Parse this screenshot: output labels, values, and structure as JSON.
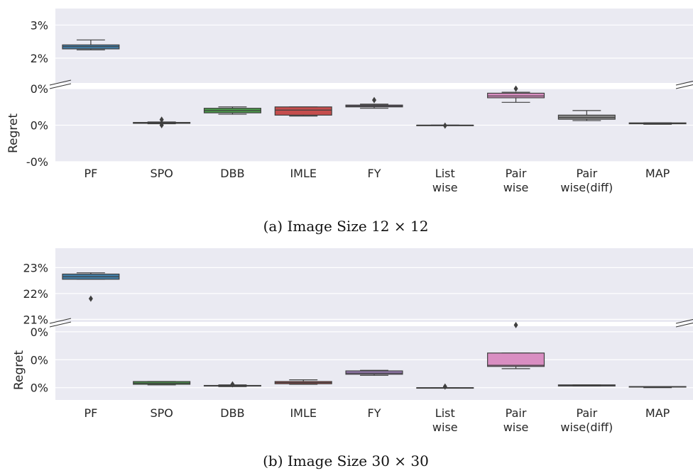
{
  "chart_data": [
    {
      "type": "box",
      "caption": "(a) Image Size 12 × 12",
      "ylabel": "Regret",
      "categories": [
        {
          "lines": [
            "PF"
          ]
        },
        {
          "lines": [
            "SPO"
          ]
        },
        {
          "lines": [
            "DBB"
          ]
        },
        {
          "lines": [
            "IMLE"
          ]
        },
        {
          "lines": [
            "FY"
          ]
        },
        {
          "lines": [
            "List",
            "wise"
          ]
        },
        {
          "lines": [
            "Pair",
            "wise"
          ]
        },
        {
          "lines": [
            "Pair",
            "wise(diff)"
          ]
        },
        {
          "lines": [
            "MAP"
          ]
        }
      ],
      "upper_ticks": [
        {
          "label": "3%",
          "value": 3.0
        },
        {
          "label": "2%",
          "value": 2.0
        }
      ],
      "upper_ylim": [
        1.25,
        3.5
      ],
      "lower_ticks": [
        {
          "label": "0%",
          "value": 0.8
        },
        {
          "label": "0%",
          "value": 0.0
        },
        {
          "label": "-0%",
          "value": -0.8
        }
      ],
      "lower_ylim": [
        -0.8,
        0.8
      ],
      "boxes": [
        {
          "panel": "upper",
          "color": "#3274a1",
          "whislo": 2.25,
          "q1": 2.28,
          "med": 2.35,
          "q3": 2.4,
          "whishi": 2.55,
          "fliers": []
        },
        {
          "panel": "lower",
          "color": "#3a923a",
          "whislo": 0.03,
          "q1": 0.04,
          "med": 0.05,
          "q3": 0.06,
          "whishi": 0.07,
          "fliers": [
            0.0,
            0.12
          ]
        },
        {
          "panel": "lower",
          "color": "#3a923a",
          "whislo": 0.24,
          "q1": 0.27,
          "med": 0.32,
          "q3": 0.37,
          "whishi": 0.4,
          "fliers": []
        },
        {
          "panel": "lower",
          "color": "#c03d3e",
          "whislo": 0.2,
          "q1": 0.22,
          "med": 0.33,
          "q3": 0.4,
          "whishi": 0.4,
          "fliers": []
        },
        {
          "panel": "lower",
          "color": "#9372b2",
          "whislo": 0.37,
          "q1": 0.4,
          "med": 0.42,
          "q3": 0.44,
          "whishi": 0.46,
          "fliers": [
            0.55
          ]
        },
        {
          "panel": "lower",
          "color": "#845b53",
          "whislo": 0.0,
          "q1": 0.0,
          "med": 0.0,
          "q3": 0.0,
          "whishi": 0.0,
          "fliers": [
            -0.01
          ]
        },
        {
          "panel": "lower",
          "color": "#d684bd",
          "whislo": 0.5,
          "q1": 0.6,
          "med": 0.64,
          "q3": 0.7,
          "whishi": 0.72,
          "fliers": [
            0.8
          ]
        },
        {
          "panel": "lower",
          "color": "#7f7f7f",
          "whislo": 0.1,
          "q1": 0.13,
          "med": 0.17,
          "q3": 0.22,
          "whishi": 0.32,
          "fliers": []
        },
        {
          "panel": "lower",
          "color": "#a9aa35",
          "whislo": 0.02,
          "q1": 0.03,
          "med": 0.04,
          "q3": 0.05,
          "whishi": 0.05,
          "fliers": []
        }
      ]
    },
    {
      "type": "box",
      "caption": "(b) Image Size 30 × 30",
      "ylabel": "Regret",
      "categories": [
        {
          "lines": [
            "PF"
          ]
        },
        {
          "lines": [
            "SPO"
          ]
        },
        {
          "lines": [
            "DBB"
          ]
        },
        {
          "lines": [
            "IMLE"
          ]
        },
        {
          "lines": [
            "FY"
          ]
        },
        {
          "lines": [
            "List",
            "wise"
          ]
        },
        {
          "lines": [
            "Pair",
            "wise"
          ]
        },
        {
          "lines": [
            "Pair",
            "wise(diff)"
          ]
        },
        {
          "lines": [
            "MAP"
          ]
        }
      ],
      "upper_ticks": [
        {
          "label": "23%",
          "value": 23.0
        },
        {
          "label": "22%",
          "value": 22.0
        },
        {
          "label": "21%",
          "value": 21.0
        }
      ],
      "upper_ylim": [
        20.9,
        23.75
      ],
      "lower_ticks": [
        {
          "label": "0%",
          "value": 1.0
        },
        {
          "label": "0%",
          "value": 0.5
        },
        {
          "label": "0%",
          "value": 0.0
        }
      ],
      "lower_ylim": [
        -0.22,
        1.1
      ],
      "boxes": [
        {
          "panel": "upper",
          "color": "#3274a1",
          "whislo": 22.55,
          "q1": 22.55,
          "med": 22.65,
          "q3": 22.75,
          "whishi": 22.8,
          "fliers": [
            21.8
          ]
        },
        {
          "panel": "lower",
          "color": "#3a923a",
          "whislo": 0.05,
          "q1": 0.06,
          "med": 0.08,
          "q3": 0.11,
          "whishi": 0.11,
          "fliers": []
        },
        {
          "panel": "lower",
          "color": "#3a923a",
          "whislo": 0.02,
          "q1": 0.03,
          "med": 0.03,
          "q3": 0.04,
          "whishi": 0.05,
          "fliers": [
            0.06
          ]
        },
        {
          "panel": "lower",
          "color": "#c03d3e",
          "whislo": 0.06,
          "q1": 0.07,
          "med": 0.09,
          "q3": 0.11,
          "whishi": 0.14,
          "fliers": []
        },
        {
          "panel": "lower",
          "color": "#9372b2",
          "whislo": 0.22,
          "q1": 0.24,
          "med": 0.26,
          "q3": 0.3,
          "whishi": 0.31,
          "fliers": []
        },
        {
          "panel": "lower",
          "color": "#845b53",
          "whislo": 0.0,
          "q1": 0.0,
          "med": 0.0,
          "q3": 0.0,
          "whishi": 0.0,
          "fliers": [
            0.02
          ]
        },
        {
          "panel": "lower",
          "color": "#d684bd",
          "whislo": 0.34,
          "q1": 0.38,
          "med": 0.4,
          "q3": 0.62,
          "whishi": 0.62,
          "fliers": [
            1.12
          ]
        },
        {
          "panel": "lower",
          "color": "#7f7f7f",
          "whislo": 0.03,
          "q1": 0.03,
          "med": 0.04,
          "q3": 0.05,
          "whishi": 0.05,
          "fliers": []
        },
        {
          "panel": "lower",
          "color": "#a9aa35",
          "whislo": 0.0,
          "q1": 0.01,
          "med": 0.01,
          "q3": 0.02,
          "whishi": 0.02,
          "fliers": []
        }
      ]
    }
  ],
  "colors": {
    "axes_background": "#eaeaf2",
    "grid": "#ffffff",
    "text": "#262626",
    "box_edge": "#3f3f3f"
  }
}
